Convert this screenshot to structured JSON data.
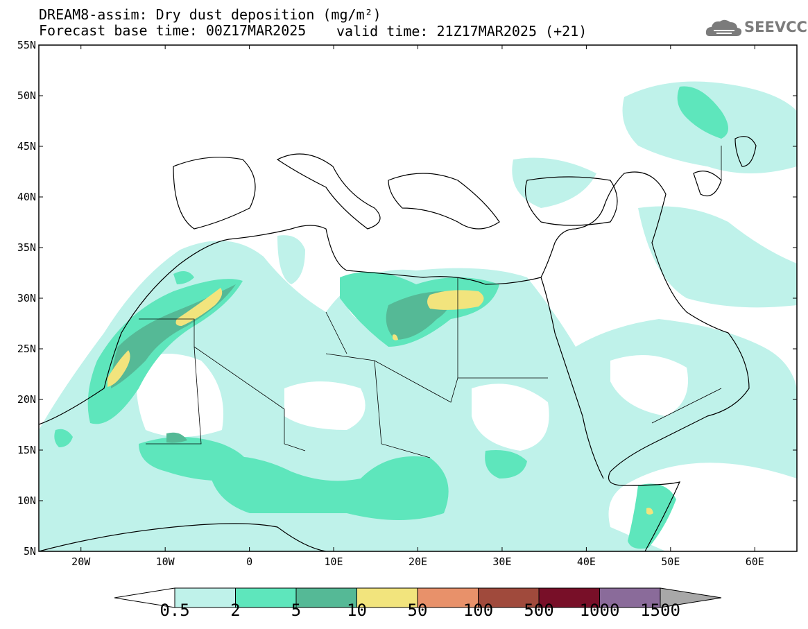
{
  "title": {
    "line1": "DREAM8-assim: Dry dust deposition (mg/m²)",
    "line2_base": "Forecast base time: 00Z17MAR2025",
    "line2_valid": "valid time: 21Z17MAR2025 (+21)"
  },
  "logo": {
    "text": "SEEVCCC",
    "icon": "cloud-icon"
  },
  "axes": {
    "lat_labels": [
      "55N",
      "50N",
      "45N",
      "40N",
      "35N",
      "30N",
      "25N",
      "20N",
      "15N",
      "10N",
      "5N"
    ],
    "lon_labels": [
      "20W",
      "10W",
      "0",
      "10E",
      "20E",
      "30E",
      "40E",
      "50E",
      "60E"
    ],
    "lon_range": [
      -25,
      65
    ],
    "lat_range": [
      5,
      55
    ]
  },
  "legend": {
    "labels": [
      "0.5",
      "2",
      "5",
      "10",
      "50",
      "100",
      "500",
      "1000",
      "1500"
    ],
    "colors": [
      "#bff2ea",
      "#5ee6bc",
      "#55b996",
      "#f2e47d",
      "#e8916a",
      "#a04a3c",
      "#780f28",
      "#8a6b9a"
    ],
    "low_color": "#ffffff",
    "high_color": "#a8a8a8"
  }
}
